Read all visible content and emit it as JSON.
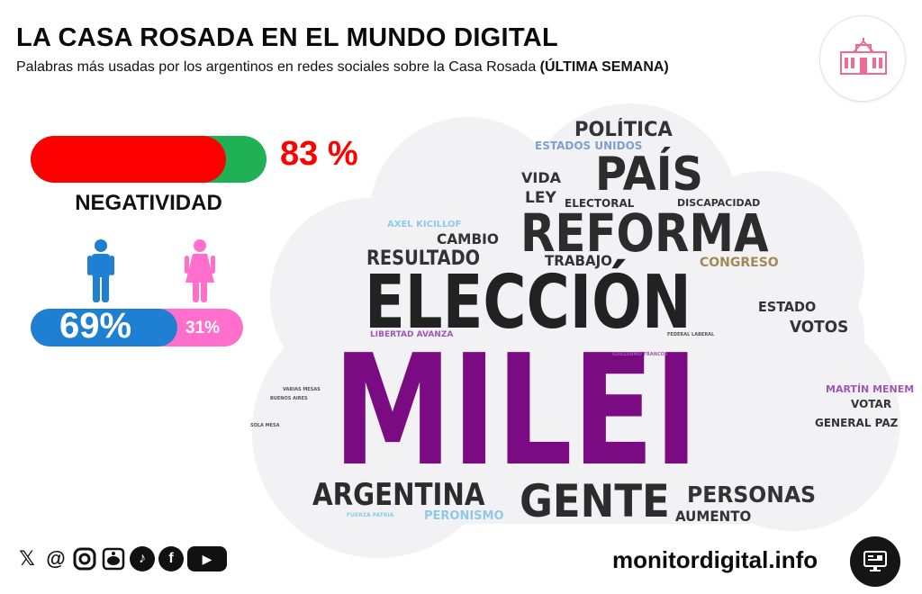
{
  "header": {
    "title": "LA CASA ROSADA EN EL MUNDO DIGITAL",
    "subtitle": "Palabras más usadas por los argentinos en redes sociales sobre la Casa Rosada",
    "subtitle_bold": "(ÚLTIMA SEMANA)"
  },
  "logo": {
    "icon": "casa-rosada-building-icon",
    "color": "#f06b93"
  },
  "negativity": {
    "label": "NEGATIVIDAD",
    "value_text": "83 %",
    "fraction": 0.83,
    "negative_color": "#ff0000",
    "positive_color": "#1fb153"
  },
  "gender": {
    "male_icon": "man-icon",
    "female_icon": "woman-icon",
    "male_text": "69%",
    "female_text": "31%",
    "male_fraction": 0.69,
    "female_fraction": 0.31,
    "male_color": "#1e7fd3",
    "female_color": "#ff6fcb"
  },
  "wordcloud": {
    "words": [
      {
        "text": "MILEI",
        "color": "#7b0b82"
      },
      {
        "text": "ELECCIÓN",
        "color": "#222222"
      },
      {
        "text": "REFORMA",
        "color": "#2c2c2c"
      },
      {
        "text": "PAÍS",
        "color": "#2c2c2c"
      },
      {
        "text": "GENTE",
        "color": "#2c2c2c"
      },
      {
        "text": "ARGENTINA",
        "color": "#2c2c2c"
      },
      {
        "text": "PERSONAS",
        "color": "#333333"
      },
      {
        "text": "POLÍTICA",
        "color": "#333333"
      },
      {
        "text": "RESULTADO",
        "color": "#333333"
      },
      {
        "text": "ESTADOS UNIDOS",
        "color": "#7fa0cf"
      },
      {
        "text": "VIDA",
        "color": "#333333"
      },
      {
        "text": "LEY",
        "color": "#333333"
      },
      {
        "text": "ELECTORAL",
        "color": "#333333"
      },
      {
        "text": "DISCAPACIDAD",
        "color": "#333333"
      },
      {
        "text": "AXEL KICILLOF",
        "color": "#8fc9ea"
      },
      {
        "text": "CAMBIO",
        "color": "#333333"
      },
      {
        "text": "TRABAJO",
        "color": "#333333"
      },
      {
        "text": "CONGRESO",
        "color": "#a08a5a"
      },
      {
        "text": "ESTADO",
        "color": "#333333"
      },
      {
        "text": "VOTOS",
        "color": "#333333"
      },
      {
        "text": "LIBERTAD AVANZA",
        "color": "#9b59b6"
      },
      {
        "text": "MARTÍN MENEM",
        "color": "#9b59b6"
      },
      {
        "text": "VOTAR",
        "color": "#333333"
      },
      {
        "text": "GENERAL PAZ",
        "color": "#333333"
      },
      {
        "text": "AUMENTO",
        "color": "#333333"
      },
      {
        "text": "PERONISMO",
        "color": "#8fc9ea"
      },
      {
        "text": "FUERZA PATRIA",
        "color": "#8fc9ea"
      },
      {
        "text": "VARIAS MESAS",
        "color": "#555555"
      },
      {
        "text": "BUENOS AIRES",
        "color": "#555555"
      },
      {
        "text": "SOLA MESA",
        "color": "#555555"
      },
      {
        "text": "FEDERAL LABERAL",
        "color": "#555555"
      },
      {
        "text": "GUILLERMO FRANCOS",
        "color": "#9b59b6"
      }
    ]
  },
  "socials": [
    "x-icon",
    "threads-icon",
    "instagram-icon",
    "reddit-icon",
    "tiktok-icon",
    "facebook-icon",
    "youtube-icon"
  ],
  "footer": {
    "site": "monitordigital.info",
    "site_icon": "monitor-desktop-icon"
  }
}
